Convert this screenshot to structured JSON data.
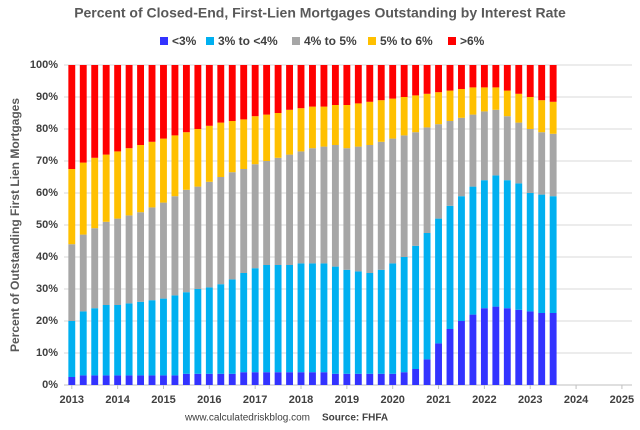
{
  "chart_data": {
    "type": "stacked_bar",
    "title": "Percent of Closed-End, First-Lien Mortgages Outstanding by Interest Rate",
    "ylabel": "Percent of Outstanding First Lien Mortgages",
    "footer": "www.calculatedriskblog.com",
    "source": "Source: FHFA",
    "x": [
      2013,
      2013.25,
      2013.5,
      2013.75,
      2014,
      2014.25,
      2014.5,
      2014.75,
      2015,
      2015.25,
      2015.5,
      2015.75,
      2016,
      2016.25,
      2016.5,
      2016.75,
      2017,
      2017.25,
      2017.5,
      2017.75,
      2018,
      2018.25,
      2018.5,
      2018.75,
      2019,
      2019.25,
      2019.5,
      2019.75,
      2020,
      2020.25,
      2020.5,
      2020.75,
      2021,
      2021.25,
      2021.5,
      2021.75,
      2022,
      2022.25,
      2022.5,
      2022.75,
      2023,
      2023.25,
      2023.5
    ],
    "series": [
      {
        "name": "<3%",
        "color": "#3333ff",
        "values": [
          2.5,
          3,
          3,
          3,
          3,
          3,
          3,
          3,
          3,
          3,
          3.5,
          3.5,
          3.5,
          3.5,
          3.5,
          4,
          4,
          4,
          4,
          4,
          4,
          4,
          4,
          3.5,
          3.5,
          3.5,
          3.5,
          3.5,
          3.5,
          4,
          5,
          8,
          13,
          17.5,
          20,
          22,
          24,
          24.5,
          24,
          23.5,
          23,
          22.5,
          22.5
        ]
      },
      {
        "name": "3% to <4%",
        "color": "#00b0f0",
        "values": [
          17.5,
          20,
          21,
          22,
          22,
          22.5,
          23,
          23.5,
          24,
          25,
          25.5,
          26.5,
          27,
          28,
          29.5,
          31,
          32.5,
          33.5,
          33.5,
          33.5,
          34,
          34,
          34,
          33.5,
          32.5,
          32,
          31.5,
          32.5,
          34.5,
          36,
          38.5,
          39.5,
          39,
          38.5,
          39,
          40,
          40,
          41,
          40,
          39.5,
          37,
          37,
          36.5
        ]
      },
      {
        "name": "4% to 5%",
        "color": "#a6a6a6",
        "values": [
          24,
          24,
          25,
          26,
          27,
          27.5,
          28,
          29,
          30,
          31,
          32,
          32,
          33,
          33.5,
          33.5,
          32.5,
          32.5,
          32.5,
          33.5,
          34.5,
          35,
          36,
          36.5,
          38,
          38,
          39,
          40,
          40,
          39,
          38,
          35.5,
          33,
          29.5,
          26.5,
          24.5,
          22.5,
          21.5,
          20.5,
          20,
          19,
          20,
          19.5,
          19.5
        ]
      },
      {
        "name": "5% to 6%",
        "color": "#ffc000",
        "values": [
          23.5,
          22.5,
          22,
          21,
          21,
          21,
          21,
          20.5,
          20,
          19,
          18,
          18,
          17.5,
          17,
          16,
          15.5,
          15,
          14.5,
          14,
          14,
          13.5,
          13,
          12.5,
          12.5,
          13.5,
          13.5,
          13.5,
          13,
          12.5,
          12,
          11.5,
          10.5,
          10,
          9.5,
          9,
          8.5,
          7.5,
          7,
          8,
          9,
          10,
          10,
          10
        ]
      },
      {
        "name": ">6%",
        "color": "#ff0000",
        "values": [
          32.5,
          30.5,
          29,
          28,
          27,
          26,
          25,
          24,
          23,
          22,
          21,
          20,
          19,
          18,
          17.5,
          17,
          16,
          15.5,
          15,
          14,
          13.5,
          13,
          13,
          12.5,
          12.5,
          12,
          11.5,
          11,
          10.5,
          10,
          9.5,
          9,
          8.5,
          8,
          7.5,
          7,
          7,
          7,
          8,
          9,
          10,
          11,
          11.5
        ]
      }
    ],
    "xlim": [
      2012.83,
      2025.22
    ],
    "xticks": [
      2013,
      2014,
      2015,
      2016,
      2017,
      2018,
      2019,
      2020,
      2021,
      2022,
      2023,
      2024,
      2025
    ],
    "ylim": [
      0,
      100
    ],
    "yticks": [
      {
        "value": 0,
        "label": "0%"
      },
      {
        "value": 10,
        "label": "10%"
      },
      {
        "value": 20,
        "label": "20%"
      },
      {
        "value": 30,
        "label": "30%"
      },
      {
        "value": 40,
        "label": "40%"
      },
      {
        "value": 50,
        "label": "50%"
      },
      {
        "value": 60,
        "label": "60%"
      },
      {
        "value": 70,
        "label": "70%"
      },
      {
        "value": 80,
        "label": "80%"
      },
      {
        "value": 90,
        "label": "90%"
      },
      {
        "value": 100,
        "label": "100%"
      }
    ],
    "grid": true
  }
}
